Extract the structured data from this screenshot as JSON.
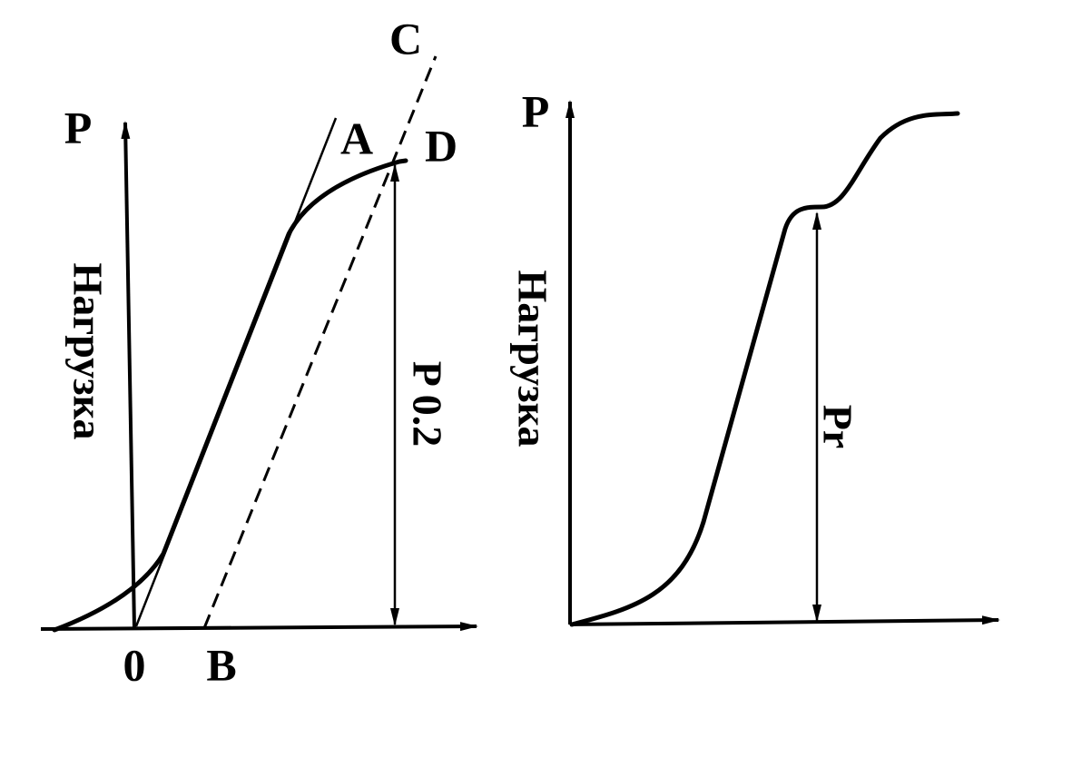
{
  "left": {
    "axis_label": "P",
    "axis_title": "Нагрузка",
    "point_c": "C",
    "point_a": "A",
    "point_d": "D",
    "origin": "0",
    "point_b": "B",
    "measure": "P 0.2"
  },
  "right": {
    "axis_label": "P",
    "axis_title": "Нагрузка",
    "measure": "Pr"
  }
}
